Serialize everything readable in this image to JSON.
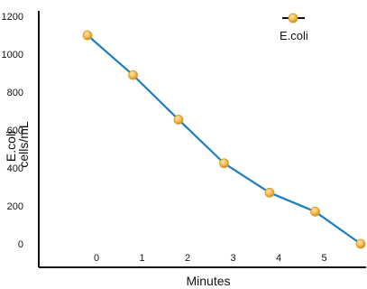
{
  "chart_data": {
    "type": "line",
    "title": "",
    "xlabel": "Minutes",
    "ylabel": [
      "E.coli",
      "cells/mL"
    ],
    "x": [
      0,
      1,
      2,
      3,
      4,
      5,
      6
    ],
    "xlim": [
      0,
      6
    ],
    "ylim": [
      0,
      1200
    ],
    "yticks": [
      0,
      200,
      400,
      600,
      800,
      1000,
      1200
    ],
    "grid": false,
    "legend_position": "top-right",
    "series": [
      {
        "name": "E.coli",
        "values": [
          1100,
          890,
          655,
          425,
          270,
          170,
          0
        ],
        "line_color": "#1a7fc1",
        "marker_color": "#f2b84b"
      }
    ]
  }
}
